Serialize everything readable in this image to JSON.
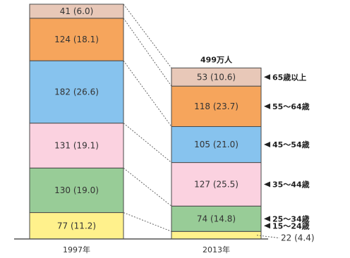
{
  "chart_data": {
    "type": "bar",
    "stacked": true,
    "categories": [
      "1997年",
      "2013年"
    ],
    "series": [
      {
        "name": "15～24歳",
        "values": [
          77,
          22
        ],
        "shares": [
          "11.2",
          "4.4"
        ],
        "color": "#fff18c"
      },
      {
        "name": "25～34歳",
        "values": [
          130,
          74
        ],
        "shares": [
          "19.0",
          "14.8"
        ],
        "color": "#98cc97"
      },
      {
        "name": "35～44歳",
        "values": [
          131,
          127
        ],
        "shares": [
          "19.1",
          "25.5"
        ],
        "color": "#fbd2e0"
      },
      {
        "name": "45～54歳",
        "values": [
          182,
          105
        ],
        "shares": [
          "26.6",
          "21.0"
        ],
        "color": "#87c3ee"
      },
      {
        "name": "55～64歳",
        "values": [
          124,
          118
        ],
        "shares": [
          "18.1",
          "23.7"
        ],
        "color": "#f6a55c"
      },
      {
        "name": "65歳以上",
        "values": [
          41,
          53
        ],
        "shares": [
          "6.0",
          "10.6"
        ],
        "color": "#e8c8b8"
      }
    ],
    "totals": [
      "",
      "499万人"
    ],
    "legend_placement": "right",
    "grid": false
  }
}
